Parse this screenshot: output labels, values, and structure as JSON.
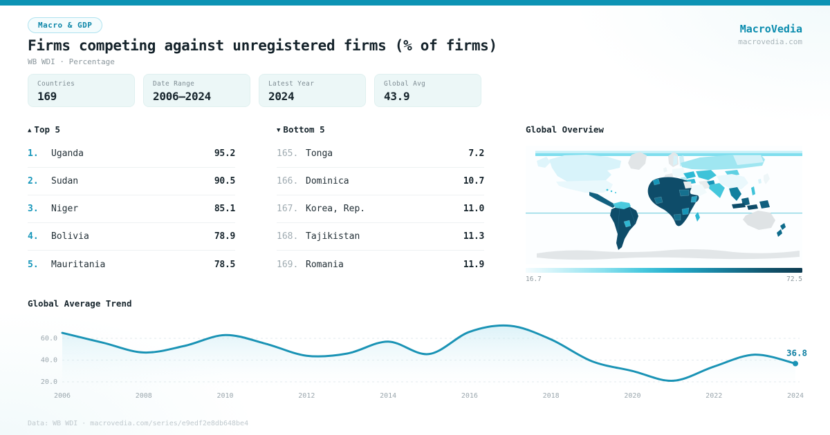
{
  "theme": {
    "accent": "#0d93b4",
    "brand": "#0a8cae",
    "ink": "#15232b",
    "muted": "#8a969c",
    "line": "#1a93b5"
  },
  "header": {
    "badge": "Macro & GDP",
    "title": "Firms competing against unregistered firms (% of firms)",
    "subtitle": "WB WDI · Percentage",
    "brand": "MacroVedia",
    "site": "macrovedia.com"
  },
  "stats": [
    {
      "label": "Countries",
      "value": "169"
    },
    {
      "label": "Date Range",
      "value": "2006—2024"
    },
    {
      "label": "Latest Year",
      "value": "2024"
    },
    {
      "label": "Global Avg",
      "value": "43.9"
    }
  ],
  "top5": {
    "icon": "▲",
    "title": "Top 5",
    "rows": [
      {
        "rank": "1.",
        "name": "Uganda",
        "value": "95.2"
      },
      {
        "rank": "2.",
        "name": "Sudan",
        "value": "90.5"
      },
      {
        "rank": "3.",
        "name": "Niger",
        "value": "85.1"
      },
      {
        "rank": "4.",
        "name": "Bolivia",
        "value": "78.9"
      },
      {
        "rank": "5.",
        "name": "Mauritania",
        "value": "78.5"
      }
    ]
  },
  "bottom5": {
    "icon": "▼",
    "title": "Bottom 5",
    "rows": [
      {
        "rank": "165.",
        "name": "Tonga",
        "value": "7.2"
      },
      {
        "rank": "166.",
        "name": "Dominica",
        "value": "10.7"
      },
      {
        "rank": "167.",
        "name": "Korea, Rep.",
        "value": "11.0"
      },
      {
        "rank": "168.",
        "name": "Tajikistan",
        "value": "11.3"
      },
      {
        "rank": "169.",
        "name": "Romania",
        "value": "11.9"
      }
    ]
  },
  "map": {
    "title": "Global Overview",
    "scale_min": "16.7",
    "scale_max": "72.5"
  },
  "trend": {
    "title": "Global Average Trend"
  },
  "footer": {
    "text": "Data: WB WDI · macrovedia.com/series/e9edf2e8db648be4"
  },
  "chart_data": [
    {
      "type": "line",
      "title": "Global Average Trend",
      "x": [
        2006,
        2007,
        2008,
        2009,
        2010,
        2011,
        2012,
        2013,
        2014,
        2015,
        2016,
        2017,
        2018,
        2019,
        2020,
        2021,
        2022,
        2023,
        2024
      ],
      "values": [
        65,
        56,
        47,
        53,
        63,
        55,
        44,
        46,
        57,
        45.5,
        66,
        71.5,
        59,
        39,
        30,
        21,
        34,
        45,
        36.8
      ],
      "end_label": "36.8",
      "yticks": [
        60,
        40,
        20
      ],
      "ytick_labels": [
        "60.0",
        "40.0",
        "20.0"
      ],
      "xtick_labels": [
        "2006",
        "2008",
        "2010",
        "2012",
        "2014",
        "2016",
        "2018",
        "2020",
        "2022",
        "2024"
      ],
      "ylim": [
        14,
        76
      ],
      "grid": "dashed-horizontal",
      "area_fill": true,
      "legend": "none"
    },
    {
      "type": "heatmap",
      "subtype": "world-choropleth",
      "title": "Global Overview",
      "scale": {
        "min": 16.7,
        "max": 72.5
      },
      "reading": {
        "high_regions": [
          "South America",
          "Africa",
          "Indonesia",
          "New Zealand"
        ],
        "mid_regions": [
          "Ukraine",
          "Central Asia",
          "India",
          "Southeast Asia",
          "Madagascar"
        ],
        "low_regions": [
          "Canada",
          "USA",
          "Europe",
          "Russia",
          "China",
          "Saudi Arabia",
          "Japan"
        ],
        "no_data_regions": [
          "Greenland",
          "Australia",
          "Antarctica",
          "Iran",
          "France",
          "Norway"
        ]
      }
    }
  ]
}
